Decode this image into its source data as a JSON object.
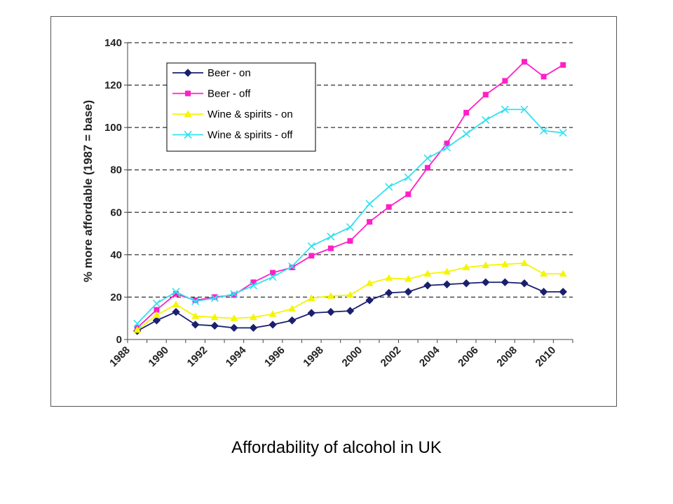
{
  "caption": "Affordability of alcohol in UK",
  "chart_data": {
    "type": "line",
    "title": "",
    "xlabel": "",
    "ylabel": "% more affordable (1987 = base)",
    "xlim": [
      1988,
      2011
    ],
    "ylim": [
      0,
      140
    ],
    "yticks": [
      0,
      20,
      40,
      60,
      80,
      100,
      120,
      140
    ],
    "xticks": [
      1988,
      1990,
      1992,
      1994,
      1996,
      1998,
      2000,
      2002,
      2004,
      2006,
      2008,
      2010
    ],
    "grid": "horizontal dashed",
    "legend_position": "top-left",
    "x": [
      1988.5,
      1989.5,
      1990.5,
      1991.5,
      1992.5,
      1993.5,
      1994.5,
      1995.5,
      1996.5,
      1997.5,
      1998.5,
      1999.5,
      2000.5,
      2001.5,
      2002.5,
      2003.5,
      2004.5,
      2005.5,
      2006.5,
      2007.5,
      2008.5,
      2009.5,
      2010.5
    ],
    "series": [
      {
        "name": "Beer - on",
        "color": "#1a1f6e",
        "marker": "diamond",
        "values": [
          4,
          9,
          13,
          7,
          6.5,
          5.5,
          5.5,
          7,
          9,
          12.5,
          13,
          13.5,
          18.5,
          22,
          22.5,
          25.5,
          26,
          26.5,
          27,
          27,
          26.5,
          22.5,
          22.5
        ]
      },
      {
        "name": "Beer - off",
        "color": "#ff1fc8",
        "marker": "square",
        "values": [
          5.5,
          14,
          21.5,
          18.5,
          20,
          21,
          27,
          31.5,
          34,
          39.5,
          43,
          46.5,
          55.5,
          62.5,
          68.5,
          81,
          92.5,
          107,
          115.5,
          122,
          131,
          124,
          129.5
        ]
      },
      {
        "name": "Wine & spirits - on",
        "color": "#f5f500",
        "marker": "triangle",
        "values": [
          4.5,
          11.5,
          16.5,
          11,
          10.5,
          10,
          10.5,
          12,
          14.5,
          19.5,
          20.5,
          21,
          26.5,
          29,
          28.5,
          31,
          32,
          34,
          35,
          35.5,
          36,
          31,
          31
        ]
      },
      {
        "name": "Wine & spirits - off",
        "color": "#33e0f0",
        "marker": "x",
        "values": [
          7.5,
          17,
          22.5,
          18,
          19.5,
          21.5,
          25.5,
          29.5,
          34.5,
          44,
          48.5,
          53,
          64,
          72,
          76.5,
          85.5,
          90.5,
          97,
          103.5,
          108.5,
          108.5,
          98.5,
          97.5
        ]
      }
    ]
  }
}
